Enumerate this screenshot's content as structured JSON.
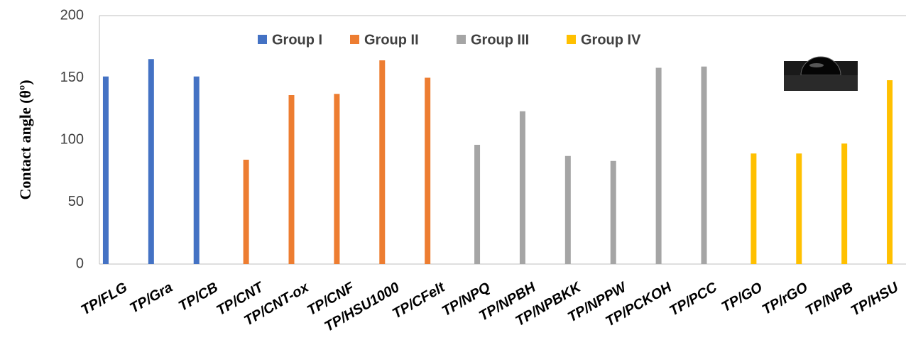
{
  "chart_data": {
    "type": "bar",
    "y_label": "Contact angle (θº)",
    "categories": [
      "TP/FLG",
      "TP/Gra",
      "TP/CB",
      "TP/CNT",
      "TP/CNT-ox",
      "TP/CNF",
      "TP/HSU1000",
      "TP/CFelt",
      "TP/NPQ",
      "TP/NPBH",
      "TP/NPBKK",
      "TP/NPPW",
      "TP/PCKOH",
      "TP/PCC",
      "TP/GO",
      "TP/rGO",
      "TP/NPB",
      "TP/HSU"
    ],
    "series": [
      {
        "name": "Group I",
        "color": "#4472c4",
        "values": [
          151,
          165,
          151,
          null,
          null,
          null,
          null,
          null,
          null,
          null,
          null,
          null,
          null,
          null,
          null,
          null,
          null,
          null
        ]
      },
      {
        "name": "Group II",
        "color": "#ed7d31",
        "values": [
          null,
          null,
          null,
          84,
          136,
          137,
          164,
          150,
          null,
          null,
          null,
          null,
          null,
          null,
          null,
          null,
          null,
          null
        ]
      },
      {
        "name": "Group III",
        "color": "#a5a5a5",
        "values": [
          null,
          null,
          null,
          null,
          null,
          null,
          null,
          null,
          96,
          123,
          87,
          83,
          158,
          159,
          null,
          null,
          null,
          null
        ]
      },
      {
        "name": "Group IV",
        "color": "#ffc000",
        "values": [
          null,
          null,
          null,
          null,
          null,
          null,
          null,
          null,
          null,
          null,
          null,
          null,
          null,
          null,
          89,
          89,
          97,
          148
        ]
      }
    ],
    "ylim": [
      0,
      200
    ],
    "yticks": [
      0,
      50,
      100,
      150,
      200
    ],
    "legend": "top"
  }
}
